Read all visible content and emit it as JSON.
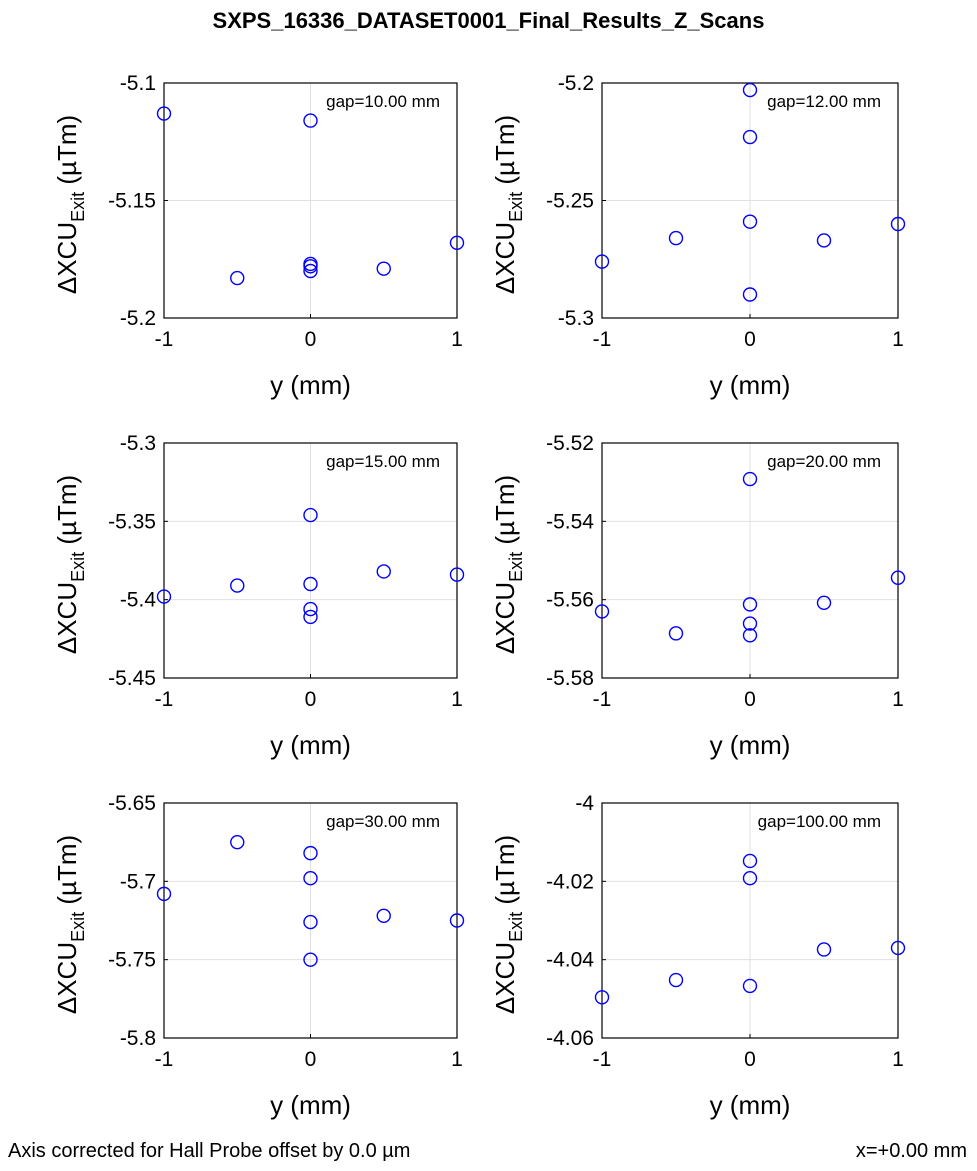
{
  "title": "SXPS_16336_DATASET0001_Final_Results_Z_Scans",
  "footer": {
    "left": "Axis corrected for Hall Probe offset by 0.0 µm",
    "right": "x=+0.00 mm"
  },
  "ylabel": {
    "prefix": "ΔXCU",
    "sub": "Exit",
    "suffix": " (µTm)"
  },
  "colors": {
    "marker": "#0000ff",
    "grid": "#e0e0e0",
    "axis": "#000000"
  },
  "chart_data": [
    {
      "type": "scatter",
      "annotation": "gap=10.00 mm",
      "xlabel": "y (mm)",
      "xlim": [
        -1,
        1
      ],
      "ylim": [
        -5.2,
        -5.1
      ],
      "xticks": [
        "-1",
        "0",
        "1"
      ],
      "yticks": [
        "-5.1",
        "-5.15",
        "-5.2"
      ],
      "x": [
        -1,
        -0.5,
        0,
        0,
        0,
        0,
        0.5,
        1
      ],
      "y": [
        -5.113,
        -5.183,
        -5.116,
        -5.177,
        -5.178,
        -5.18,
        -5.179,
        -5.168
      ]
    },
    {
      "type": "scatter",
      "annotation": "gap=12.00 mm",
      "xlabel": "y (mm)",
      "xlim": [
        -1,
        1
      ],
      "ylim": [
        -5.3,
        -5.2
      ],
      "xticks": [
        "-1",
        "0",
        "1"
      ],
      "yticks": [
        "-5.2",
        "-5.25",
        "-5.3"
      ],
      "x": [
        -1,
        -0.5,
        0,
        0,
        0,
        0,
        0.5,
        1
      ],
      "y": [
        -5.276,
        -5.266,
        -5.203,
        -5.223,
        -5.259,
        -5.29,
        -5.267,
        -5.26
      ]
    },
    {
      "type": "scatter",
      "annotation": "gap=15.00 mm",
      "xlabel": "y (mm)",
      "xlim": [
        -1,
        1
      ],
      "ylim": [
        -5.45,
        -5.3
      ],
      "xticks": [
        "-1",
        "0",
        "1"
      ],
      "yticks": [
        "-5.3",
        "-5.35",
        "-5.4",
        "-5.45"
      ],
      "x": [
        -1,
        -0.5,
        0,
        0,
        0,
        0,
        0.5,
        1
      ],
      "y": [
        -5.398,
        -5.391,
        -5.346,
        -5.39,
        -5.406,
        -5.411,
        -5.382,
        -5.384
      ]
    },
    {
      "type": "scatter",
      "annotation": "gap=20.00 mm",
      "xlabel": "y (mm)",
      "xlim": [
        -1,
        1
      ],
      "ylim": [
        -5.58,
        -5.52
      ],
      "xticks": [
        "-1",
        "0",
        "1"
      ],
      "yticks": [
        "-5.52",
        "-5.54",
        "-5.56",
        "-5.58"
      ],
      "x": [
        -1,
        -0.5,
        0,
        0,
        0,
        0,
        0.5,
        1
      ],
      "y": [
        -5.563,
        -5.5686,
        -5.5292,
        -5.5612,
        -5.5661,
        -5.5691,
        -5.5608,
        -5.5544
      ]
    },
    {
      "type": "scatter",
      "annotation": "gap=30.00 mm",
      "xlabel": "y (mm)",
      "xlim": [
        -1,
        1
      ],
      "ylim": [
        -5.8,
        -5.65
      ],
      "xticks": [
        "-1",
        "0",
        "1"
      ],
      "yticks": [
        "-5.65",
        "-5.7",
        "-5.75",
        "-5.8"
      ],
      "x": [
        -1,
        -0.5,
        0,
        0,
        0,
        0,
        0.5,
        1
      ],
      "y": [
        -5.708,
        -5.675,
        -5.682,
        -5.698,
        -5.726,
        -5.75,
        -5.722,
        -5.725
      ]
    },
    {
      "type": "scatter",
      "annotation": "gap=100.00 mm",
      "xlabel": "y (mm)",
      "xlim": [
        -1,
        1
      ],
      "ylim": [
        -4.06,
        -4.0
      ],
      "xticks": [
        "-1",
        "0",
        "1"
      ],
      "yticks": [
        "-4",
        "-4.02",
        "-4.04",
        "-4.06"
      ],
      "x": [
        -1,
        -0.5,
        0,
        0,
        0,
        0.5,
        1
      ],
      "y": [
        -4.0496,
        -4.0452,
        -4.0148,
        -4.0192,
        -4.0467,
        -4.0374,
        -4.037
      ]
    }
  ]
}
